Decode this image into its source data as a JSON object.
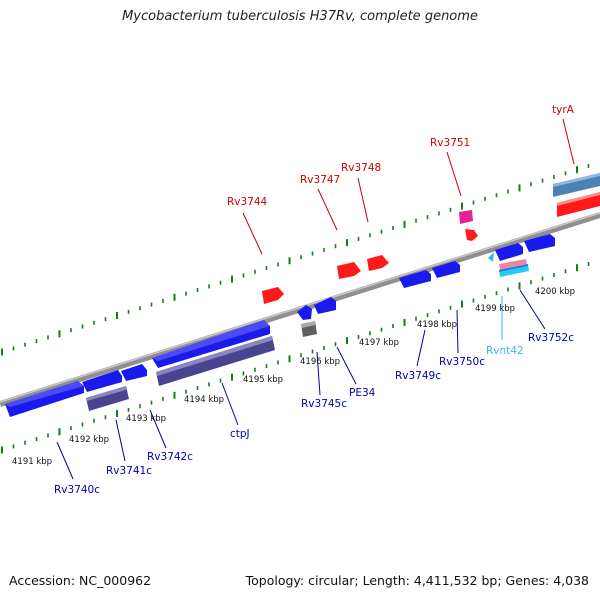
{
  "title": "Mycobacterium tuberculosis H37Rv, complete genome",
  "footer": {
    "accession": "Accession: NC_000962",
    "summary": "Topology: circular; Length: 4,411,532 bp; Genes: 4,038"
  },
  "colors": {
    "backbone": "#8f8f8f",
    "tick": "#1a7a1a",
    "plus_label": "#cc0000",
    "minus_label": "#0000aa",
    "rna_label": "#33bbee",
    "cds_plus": "#ff1a1a",
    "cds_minus": "#1a1aee",
    "other_plus": "#e6229a",
    "rna": "#22ccee",
    "repeat": "#6b62a6",
    "gray_feature": "#777777",
    "steel": "#4b82b6"
  },
  "kbp_labels": [
    "4191 kbp",
    "4192 kbp",
    "4193 kbp",
    "4194 kbp",
    "4195 kbp",
    "4196 kbp",
    "4197 kbp",
    "4198 kbp",
    "4199 kbp",
    "4200 kbp"
  ],
  "plus_gene_labels": [
    "Rv3744",
    "Rv3747",
    "Rv3748",
    "Rv3751",
    "tyrA"
  ],
  "minus_gene_labels": [
    "Rv3740c",
    "Rv3741c",
    "Rv3742c",
    "ctpJ",
    "Rv3745c",
    "PE34",
    "Rv3749c",
    "Rv3750c",
    "Rvnt42",
    "Rv3752c"
  ]
}
